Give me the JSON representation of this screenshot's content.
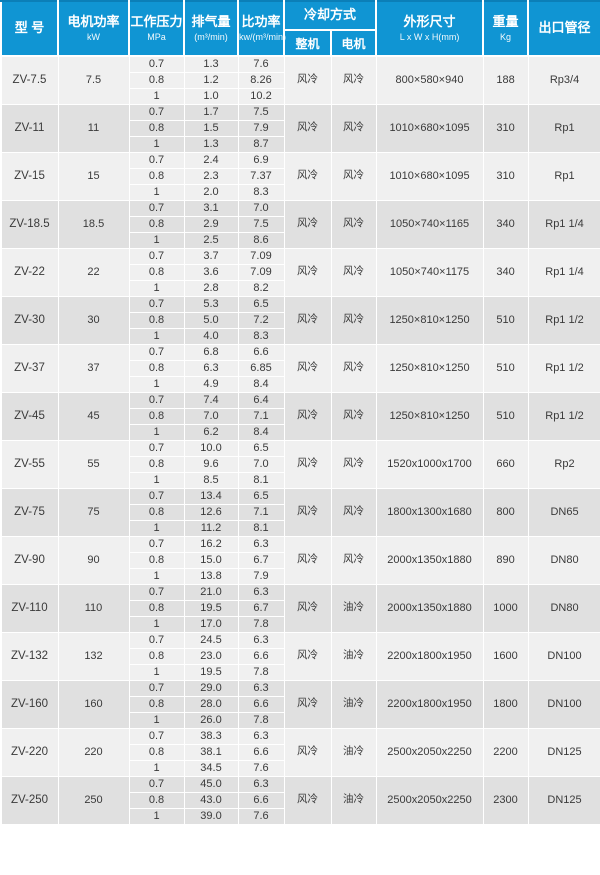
{
  "colors": {
    "header_bg": "#1095d3",
    "header_top_edge": "#0b7fb8",
    "header_text": "#ffffff",
    "row_light": "#f0f0f0",
    "row_dark": "#e0e0e0",
    "border": "#ffffff",
    "body_text": "#3a3a3a"
  },
  "table": {
    "header": {
      "model": "型 号",
      "power": {
        "main": "电机功率",
        "sub": "kW"
      },
      "pressure": {
        "main": "工作压力",
        "sub": "MPa"
      },
      "displacement": {
        "main": "排气量",
        "sub": "(m³/min)"
      },
      "specific_power": {
        "main": "比功率",
        "sub": "kw/(m³/min)"
      },
      "cooling": {
        "main": "冷却方式",
        "whole": "整机",
        "motor": "电机"
      },
      "dimensions": {
        "main": "外形尺寸",
        "sub": "L x W x H(mm)"
      },
      "weight": {
        "main": "重量",
        "sub": "Kg"
      },
      "outlet": "出口管径"
    },
    "rows": [
      {
        "model": "ZV-7.5",
        "power": "7.5",
        "cooling_whole": "风冷",
        "cooling_motor": "风冷",
        "dimensions": "800×580×940",
        "weight": "188",
        "outlet": "Rp3/4",
        "sub": [
          [
            "0.7",
            "1.3",
            "7.6"
          ],
          [
            "0.8",
            "1.2",
            "8.26"
          ],
          [
            "1",
            "1.0",
            "10.2"
          ]
        ]
      },
      {
        "model": "ZV-11",
        "power": "11",
        "cooling_whole": "风冷",
        "cooling_motor": "风冷",
        "dimensions": "1010×680×1095",
        "weight": "310",
        "outlet": "Rp1",
        "sub": [
          [
            "0.7",
            "1.7",
            "7.5"
          ],
          [
            "0.8",
            "1.5",
            "7.9"
          ],
          [
            "1",
            "1.3",
            "8.7"
          ]
        ]
      },
      {
        "model": "ZV-15",
        "power": "15",
        "cooling_whole": "风冷",
        "cooling_motor": "风冷",
        "dimensions": "1010×680×1095",
        "weight": "310",
        "outlet": "Rp1",
        "sub": [
          [
            "0.7",
            "2.4",
            "6.9"
          ],
          [
            "0.8",
            "2.3",
            "7.37"
          ],
          [
            "1",
            "2.0",
            "8.3"
          ]
        ]
      },
      {
        "model": "ZV-18.5",
        "power": "18.5",
        "cooling_whole": "风冷",
        "cooling_motor": "风冷",
        "dimensions": "1050×740×1165",
        "weight": "340",
        "outlet": "Rp1 1/4",
        "sub": [
          [
            "0.7",
            "3.1",
            "7.0"
          ],
          [
            "0.8",
            "2.9",
            "7.5"
          ],
          [
            "1",
            "2.5",
            "8.6"
          ]
        ]
      },
      {
        "model": "ZV-22",
        "power": "22",
        "cooling_whole": "风冷",
        "cooling_motor": "风冷",
        "dimensions": "1050×740×1175",
        "weight": "340",
        "outlet": "Rp1 1/4",
        "sub": [
          [
            "0.7",
            "3.7",
            "7.09"
          ],
          [
            "0.8",
            "3.6",
            "7.09"
          ],
          [
            "1",
            "2.8",
            "8.2"
          ]
        ]
      },
      {
        "model": "ZV-30",
        "power": "30",
        "cooling_whole": "风冷",
        "cooling_motor": "风冷",
        "dimensions": "1250×810×1250",
        "weight": "510",
        "outlet": "Rp1 1/2",
        "sub": [
          [
            "0.7",
            "5.3",
            "6.5"
          ],
          [
            "0.8",
            "5.0",
            "7.2"
          ],
          [
            "1",
            "4.0",
            "8.3"
          ]
        ]
      },
      {
        "model": "ZV-37",
        "power": "37",
        "cooling_whole": "风冷",
        "cooling_motor": "风冷",
        "dimensions": "1250×810×1250",
        "weight": "510",
        "outlet": "Rp1 1/2",
        "sub": [
          [
            "0.7",
            "6.8",
            "6.6"
          ],
          [
            "0.8",
            "6.3",
            "6.85"
          ],
          [
            "1",
            "4.9",
            "8.4"
          ]
        ]
      },
      {
        "model": "ZV-45",
        "power": "45",
        "cooling_whole": "风冷",
        "cooling_motor": "风冷",
        "dimensions": "1250×810×1250",
        "weight": "510",
        "outlet": "Rp1 1/2",
        "sub": [
          [
            "0.7",
            "7.4",
            "6.4"
          ],
          [
            "0.8",
            "7.0",
            "7.1"
          ],
          [
            "1",
            "6.2",
            "8.4"
          ]
        ]
      },
      {
        "model": "ZV-55",
        "power": "55",
        "cooling_whole": "风冷",
        "cooling_motor": "风冷",
        "dimensions": "1520x1000x1700",
        "weight": "660",
        "outlet": "Rp2",
        "sub": [
          [
            "0.7",
            "10.0",
            "6.5"
          ],
          [
            "0.8",
            "9.6",
            "7.0"
          ],
          [
            "1",
            "8.5",
            "8.1"
          ]
        ]
      },
      {
        "model": "ZV-75",
        "power": "75",
        "cooling_whole": "风冷",
        "cooling_motor": "风冷",
        "dimensions": "1800x1300x1680",
        "weight": "800",
        "outlet": "DN65",
        "sub": [
          [
            "0.7",
            "13.4",
            "6.5"
          ],
          [
            "0.8",
            "12.6",
            "7.1"
          ],
          [
            "1",
            "11.2",
            "8.1"
          ]
        ]
      },
      {
        "model": "ZV-90",
        "power": "90",
        "cooling_whole": "风冷",
        "cooling_motor": "风冷",
        "dimensions": "2000x1350x1880",
        "weight": "890",
        "outlet": "DN80",
        "sub": [
          [
            "0.7",
            "16.2",
            "6.3"
          ],
          [
            "0.8",
            "15.0",
            "6.7"
          ],
          [
            "1",
            "13.8",
            "7.9"
          ]
        ]
      },
      {
        "model": "ZV-110",
        "power": "110",
        "cooling_whole": "风冷",
        "cooling_motor": "油冷",
        "dimensions": "2000x1350x1880",
        "weight": "1000",
        "outlet": "DN80",
        "sub": [
          [
            "0.7",
            "21.0",
            "6.3"
          ],
          [
            "0.8",
            "19.5",
            "6.7"
          ],
          [
            "1",
            "17.0",
            "7.8"
          ]
        ]
      },
      {
        "model": "ZV-132",
        "power": "132",
        "cooling_whole": "风冷",
        "cooling_motor": "油冷",
        "dimensions": "2200x1800x1950",
        "weight": "1600",
        "outlet": "DN100",
        "sub": [
          [
            "0.7",
            "24.5",
            "6.3"
          ],
          [
            "0.8",
            "23.0",
            "6.6"
          ],
          [
            "1",
            "19.5",
            "7.8"
          ]
        ]
      },
      {
        "model": "ZV-160",
        "power": "160",
        "cooling_whole": "风冷",
        "cooling_motor": "油冷",
        "dimensions": "2200x1800x1950",
        "weight": "1800",
        "outlet": "DN100",
        "sub": [
          [
            "0.7",
            "29.0",
            "6.3"
          ],
          [
            "0.8",
            "28.0",
            "6.6"
          ],
          [
            "1",
            "26.0",
            "7.8"
          ]
        ]
      },
      {
        "model": "ZV-220",
        "power": "220",
        "cooling_whole": "风冷",
        "cooling_motor": "油冷",
        "dimensions": "2500x2050x2250",
        "weight": "2200",
        "outlet": "DN125",
        "sub": [
          [
            "0.7",
            "38.3",
            "6.3"
          ],
          [
            "0.8",
            "38.1",
            "6.6"
          ],
          [
            "1",
            "34.5",
            "7.6"
          ]
        ]
      },
      {
        "model": "ZV-250",
        "power": "250",
        "cooling_whole": "风冷",
        "cooling_motor": "油冷",
        "dimensions": "2500x2050x2250",
        "weight": "2300",
        "outlet": "DN125",
        "sub": [
          [
            "0.7",
            "45.0",
            "6.3"
          ],
          [
            "0.8",
            "43.0",
            "6.6"
          ],
          [
            "1",
            "39.0",
            "7.6"
          ]
        ]
      }
    ]
  }
}
